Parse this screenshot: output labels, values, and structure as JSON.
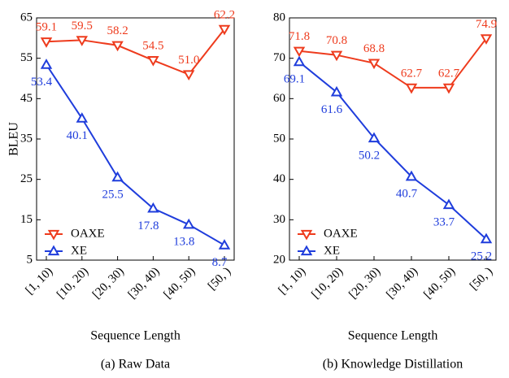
{
  "chart_data": [
    {
      "type": "line",
      "caption": "(a) Raw Data",
      "xlabel": "Sequence Length",
      "ylabel": "BLEU",
      "categories": [
        "[1, 10)",
        "[10, 20)",
        "[20, 30)",
        "[30, 40)",
        "[40, 50)",
        "[50, )"
      ],
      "ylim": [
        5,
        65
      ],
      "yticks": [
        5,
        15,
        25,
        35,
        45,
        55,
        65
      ],
      "legend": "lower left",
      "series": [
        {
          "name": "OAXE",
          "color": "#ee3b1d",
          "marker": "v",
          "values": [
            59.1,
            59.5,
            58.2,
            54.5,
            51.0,
            62.2
          ],
          "value_labels": [
            "59.1",
            "59.5",
            "58.2",
            "54.5",
            "51.0",
            "62.2"
          ]
        },
        {
          "name": "XE",
          "color": "#1f3ddc",
          "marker": "^",
          "values": [
            53.4,
            40.1,
            25.5,
            17.8,
            13.8,
            8.7
          ],
          "value_labels": [
            "53.4",
            "40.1",
            "25.5",
            "17.8",
            "13.8",
            "8.7"
          ]
        }
      ]
    },
    {
      "type": "line",
      "caption": "(b) Knowledge Distillation",
      "xlabel": "Sequence Length",
      "categories": [
        "[1, 10)",
        "[10, 20)",
        "[20, 30)",
        "[30, 40)",
        "[40, 50)",
        "[50, )"
      ],
      "ylim": [
        20,
        80
      ],
      "yticks": [
        20,
        30,
        40,
        50,
        60,
        70,
        80
      ],
      "legend": "lower left",
      "series": [
        {
          "name": "OAXE",
          "color": "#ee3b1d",
          "marker": "v",
          "values": [
            71.8,
            70.8,
            68.8,
            62.7,
            62.7,
            74.9
          ],
          "value_labels": [
            "71.8",
            "70.8",
            "68.8",
            "62.7",
            "62.7",
            "74.9"
          ]
        },
        {
          "name": "XE",
          "color": "#1f3ddc",
          "marker": "^",
          "values": [
            69.1,
            61.6,
            50.2,
            40.7,
            33.7,
            25.2
          ],
          "value_labels": [
            "69.1",
            "61.6",
            "50.2",
            "40.7",
            "33.7",
            "25.2"
          ]
        }
      ]
    }
  ]
}
